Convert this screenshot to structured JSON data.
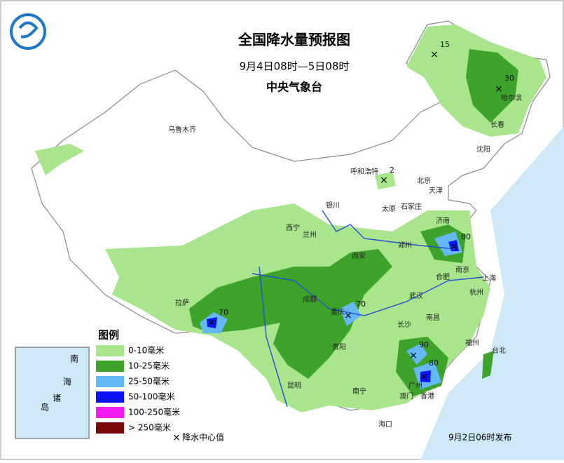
{
  "header": {
    "title": "全国降水量预报图",
    "period": "9月4日08时—5日08时",
    "issuer": "中央气象台"
  },
  "legend": {
    "title": "图例",
    "items": [
      {
        "label": "0-10毫米",
        "color": "#a8e58c"
      },
      {
        "label": "10-25毫米",
        "color": "#3ea32b"
      },
      {
        "label": "25-50毫米",
        "color": "#63b8f5"
      },
      {
        "label": "50-100毫米",
        "color": "#0a14f0"
      },
      {
        "label": "100-250毫米",
        "color": "#f21cf2"
      },
      {
        "label": "> 250毫米",
        "color": "#7a0a0a"
      }
    ],
    "center_label": "降水中心值"
  },
  "cities": [
    "乌鲁木齐",
    "呼和浩特",
    "北京",
    "天津",
    "石家庄",
    "太原",
    "银川",
    "西宁",
    "兰州",
    "济南",
    "郑州",
    "西安",
    "合肥",
    "南京",
    "上海",
    "杭州",
    "武汉",
    "成都",
    "重庆",
    "长沙",
    "南昌",
    "贵阳",
    "福州",
    "台北",
    "昆明",
    "南宁",
    "广州",
    "香港",
    "澳门",
    "海口",
    "拉萨",
    "沈阳",
    "长春",
    "哈尔滨"
  ],
  "rain_centers": [
    15,
    30,
    2,
    70,
    70,
    80,
    90,
    80
  ],
  "inset": {
    "labels": [
      "南",
      "海",
      "诸",
      "岛"
    ]
  },
  "footer": "9月2日06时发布"
}
